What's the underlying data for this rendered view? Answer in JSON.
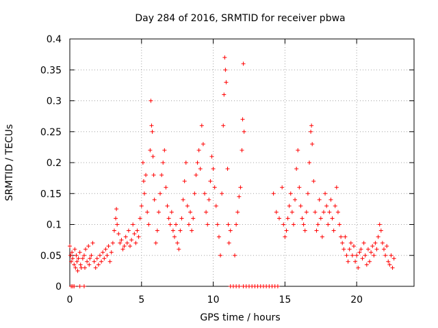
{
  "chart_data": {
    "type": "scatter",
    "title": "Day 284 of 2016, SRMTID for receiver pbwa",
    "xlabel": "GPS time / hours",
    "ylabel": "SRMTID / TECUs",
    "xlim": [
      0,
      24
    ],
    "ylim": [
      0,
      0.4
    ],
    "grid": true,
    "marker": "plus",
    "color": "#ff0000",
    "x_ticks": [
      0,
      5,
      10,
      15,
      20
    ],
    "x_tick_labels": [
      "0",
      "5",
      "10",
      "15",
      "20"
    ],
    "y_ticks": [
      0,
      0.05,
      0.1,
      0.15,
      0.2,
      0.25,
      0.3,
      0.35,
      0.4
    ],
    "y_tick_labels": [
      "0",
      "0.05",
      "0.1",
      "0.15",
      "0.2",
      "0.25",
      "0.3",
      "0.35",
      "0.4"
    ],
    "series": [
      {
        "name": "SRMTID",
        "points": [
          [
            0.0,
            0.065
          ],
          [
            0.05,
            0.05
          ],
          [
            0.1,
            0.04
          ],
          [
            0.15,
            0.055
          ],
          [
            0.2,
            0.045
          ],
          [
            0.3,
            0.035
          ],
          [
            0.35,
            0.06
          ],
          [
            0.4,
            0.03
          ],
          [
            0.45,
            0.05
          ],
          [
            0.5,
            0.04
          ],
          [
            0.55,
            0.025
          ],
          [
            0.6,
            0.045
          ],
          [
            0.7,
            0.055
          ],
          [
            0.75,
            0.035
          ],
          [
            0.8,
            0.03
          ],
          [
            0.9,
            0.045
          ],
          [
            1.0,
            0.05
          ],
          [
            1.05,
            0.03
          ],
          [
            1.1,
            0.06
          ],
          [
            1.2,
            0.04
          ],
          [
            1.3,
            0.065
          ],
          [
            1.35,
            0.035
          ],
          [
            1.4,
            0.045
          ],
          [
            1.5,
            0.05
          ],
          [
            1.6,
            0.07
          ],
          [
            1.7,
            0.04
          ],
          [
            1.8,
            0.03
          ],
          [
            1.9,
            0.045
          ],
          [
            2.0,
            0.035
          ],
          [
            2.1,
            0.05
          ],
          [
            2.2,
            0.04
          ],
          [
            2.3,
            0.055
          ],
          [
            2.4,
            0.045
          ],
          [
            2.5,
            0.06
          ],
          [
            2.6,
            0.05
          ],
          [
            2.7,
            0.065
          ],
          [
            2.8,
            0.04
          ],
          [
            2.9,
            0.055
          ],
          [
            3.0,
            0.07
          ],
          [
            3.1,
            0.09
          ],
          [
            3.2,
            0.11
          ],
          [
            3.25,
            0.125
          ],
          [
            3.3,
            0.1
          ],
          [
            3.4,
            0.085
          ],
          [
            3.5,
            0.07
          ],
          [
            3.6,
            0.075
          ],
          [
            3.7,
            0.06
          ],
          [
            3.8,
            0.065
          ],
          [
            3.9,
            0.08
          ],
          [
            4.0,
            0.07
          ],
          [
            4.1,
            0.09
          ],
          [
            4.2,
            0.065
          ],
          [
            4.3,
            0.075
          ],
          [
            4.4,
            0.1
          ],
          [
            4.5,
            0.085
          ],
          [
            4.6,
            0.07
          ],
          [
            4.7,
            0.09
          ],
          [
            4.8,
            0.08
          ],
          [
            4.9,
            0.11
          ],
          [
            5.0,
            0.13
          ],
          [
            5.1,
            0.2
          ],
          [
            5.15,
            0.17
          ],
          [
            5.2,
            0.15
          ],
          [
            5.3,
            0.18
          ],
          [
            5.4,
            0.12
          ],
          [
            5.5,
            0.1
          ],
          [
            5.6,
            0.22
          ],
          [
            5.65,
            0.3
          ],
          [
            5.7,
            0.26
          ],
          [
            5.75,
            0.25
          ],
          [
            5.8,
            0.21
          ],
          [
            5.85,
            0.18
          ],
          [
            5.9,
            0.14
          ],
          [
            6.0,
            0.07
          ],
          [
            6.1,
            0.09
          ],
          [
            6.2,
            0.12
          ],
          [
            6.3,
            0.15
          ],
          [
            6.4,
            0.18
          ],
          [
            6.5,
            0.2
          ],
          [
            6.6,
            0.22
          ],
          [
            6.7,
            0.16
          ],
          [
            6.8,
            0.13
          ],
          [
            6.9,
            0.11
          ],
          [
            7.0,
            0.1
          ],
          [
            7.1,
            0.12
          ],
          [
            7.2,
            0.09
          ],
          [
            7.3,
            0.08
          ],
          [
            7.4,
            0.1
          ],
          [
            7.5,
            0.07
          ],
          [
            7.6,
            0.06
          ],
          [
            7.7,
            0.09
          ],
          [
            7.8,
            0.11
          ],
          [
            7.9,
            0.14
          ],
          [
            8.0,
            0.17
          ],
          [
            8.1,
            0.2
          ],
          [
            8.2,
            0.13
          ],
          [
            8.3,
            0.1
          ],
          [
            8.4,
            0.12
          ],
          [
            8.5,
            0.09
          ],
          [
            8.6,
            0.11
          ],
          [
            8.7,
            0.15
          ],
          [
            8.8,
            0.18
          ],
          [
            8.9,
            0.2
          ],
          [
            9.0,
            0.22
          ],
          [
            9.1,
            0.19
          ],
          [
            9.2,
            0.26
          ],
          [
            9.3,
            0.23
          ],
          [
            9.4,
            0.15
          ],
          [
            9.5,
            0.12
          ],
          [
            9.6,
            0.1
          ],
          [
            9.7,
            0.14
          ],
          [
            9.8,
            0.17
          ],
          [
            9.9,
            0.21
          ],
          [
            10.0,
            0.19
          ],
          [
            10.1,
            0.16
          ],
          [
            10.2,
            0.13
          ],
          [
            10.3,
            0.1
          ],
          [
            10.4,
            0.08
          ],
          [
            10.5,
            0.05
          ],
          [
            10.6,
            0.15
          ],
          [
            10.7,
            0.26
          ],
          [
            10.75,
            0.31
          ],
          [
            10.8,
            0.37
          ],
          [
            10.85,
            0.35
          ],
          [
            10.9,
            0.33
          ],
          [
            11.0,
            0.19
          ],
          [
            11.05,
            0.1
          ],
          [
            11.1,
            0.07
          ],
          [
            11.2,
            0.09
          ],
          [
            11.5,
            0.05
          ],
          [
            11.6,
            0.1
          ],
          [
            11.7,
            0.12
          ],
          [
            11.8,
            0.145
          ],
          [
            11.9,
            0.16
          ],
          [
            12.0,
            0.22
          ],
          [
            12.05,
            0.27
          ],
          [
            12.1,
            0.36
          ],
          [
            12.15,
            0.25
          ],
          [
            14.2,
            0.15
          ],
          [
            14.4,
            0.12
          ],
          [
            14.6,
            0.11
          ],
          [
            14.8,
            0.16
          ],
          [
            14.9,
            0.1
          ],
          [
            15.0,
            0.08
          ],
          [
            15.1,
            0.09
          ],
          [
            15.2,
            0.11
          ],
          [
            15.3,
            0.13
          ],
          [
            15.4,
            0.15
          ],
          [
            15.5,
            0.12
          ],
          [
            15.6,
            0.1
          ],
          [
            15.7,
            0.14
          ],
          [
            15.8,
            0.19
          ],
          [
            15.9,
            0.22
          ],
          [
            16.0,
            0.16
          ],
          [
            16.1,
            0.13
          ],
          [
            16.2,
            0.11
          ],
          [
            16.3,
            0.1
          ],
          [
            16.4,
            0.09
          ],
          [
            16.5,
            0.12
          ],
          [
            16.6,
            0.15
          ],
          [
            16.7,
            0.2
          ],
          [
            16.8,
            0.25
          ],
          [
            16.85,
            0.26
          ],
          [
            16.9,
            0.23
          ],
          [
            17.0,
            0.17
          ],
          [
            17.1,
            0.12
          ],
          [
            17.2,
            0.09
          ],
          [
            17.3,
            0.1
          ],
          [
            17.4,
            0.14
          ],
          [
            17.5,
            0.11
          ],
          [
            17.6,
            0.08
          ],
          [
            17.7,
            0.12
          ],
          [
            17.8,
            0.15
          ],
          [
            17.9,
            0.13
          ],
          [
            18.0,
            0.1
          ],
          [
            18.1,
            0.12
          ],
          [
            18.2,
            0.14
          ],
          [
            18.3,
            0.11
          ],
          [
            18.4,
            0.09
          ],
          [
            18.5,
            0.13
          ],
          [
            18.6,
            0.16
          ],
          [
            18.7,
            0.12
          ],
          [
            18.8,
            0.1
          ],
          [
            18.9,
            0.08
          ],
          [
            19.0,
            0.07
          ],
          [
            19.1,
            0.06
          ],
          [
            19.2,
            0.08
          ],
          [
            19.3,
            0.05
          ],
          [
            19.4,
            0.04
          ],
          [
            19.5,
            0.06
          ],
          [
            19.6,
            0.07
          ],
          [
            19.7,
            0.05
          ],
          [
            19.8,
            0.065
          ],
          [
            19.9,
            0.04
          ],
          [
            20.0,
            0.05
          ],
          [
            20.1,
            0.03
          ],
          [
            20.2,
            0.055
          ],
          [
            20.3,
            0.06
          ],
          [
            20.4,
            0.045
          ],
          [
            20.5,
            0.07
          ],
          [
            20.6,
            0.05
          ],
          [
            20.7,
            0.035
          ],
          [
            20.8,
            0.06
          ],
          [
            20.9,
            0.04
          ],
          [
            21.0,
            0.055
          ],
          [
            21.1,
            0.065
          ],
          [
            21.2,
            0.05
          ],
          [
            21.3,
            0.07
          ],
          [
            21.4,
            0.06
          ],
          [
            21.5,
            0.08
          ],
          [
            21.6,
            0.1
          ],
          [
            21.7,
            0.09
          ],
          [
            21.8,
            0.07
          ],
          [
            21.9,
            0.06
          ],
          [
            22.0,
            0.05
          ],
          [
            22.1,
            0.065
          ],
          [
            22.2,
            0.04
          ],
          [
            22.3,
            0.035
          ],
          [
            22.4,
            0.05
          ],
          [
            22.5,
            0.03
          ],
          [
            22.6,
            0.045
          ],
          [
            0.1,
            0.0
          ],
          [
            0.2,
            0.0
          ],
          [
            0.3,
            0.0
          ],
          [
            0.7,
            0.0
          ],
          [
            1.0,
            0.0
          ],
          [
            11.2,
            0.0
          ],
          [
            11.4,
            0.0
          ],
          [
            11.6,
            0.0
          ],
          [
            11.8,
            0.0
          ],
          [
            12.1,
            0.0
          ],
          [
            12.3,
            0.0
          ],
          [
            12.5,
            0.0
          ],
          [
            12.7,
            0.0
          ],
          [
            12.9,
            0.0
          ],
          [
            13.1,
            0.0
          ],
          [
            13.3,
            0.0
          ],
          [
            13.5,
            0.0
          ],
          [
            13.7,
            0.0
          ],
          [
            13.9,
            0.0
          ],
          [
            14.1,
            0.0
          ],
          [
            14.3,
            0.0
          ],
          [
            14.5,
            0.0
          ]
        ]
      }
    ]
  }
}
